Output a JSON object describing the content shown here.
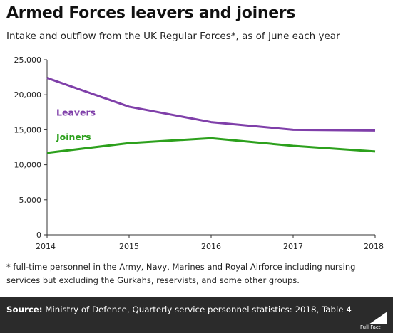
{
  "header": {
    "title": "Armed Forces leavers and joiners",
    "subtitle": "Intake and outflow from the UK Regular Forces*, as of June each year"
  },
  "chart_data": {
    "type": "line",
    "x": [
      2014,
      2015,
      2016,
      2017,
      2018
    ],
    "series": [
      {
        "name": "Leavers",
        "values": [
          22400,
          18300,
          16100,
          15000,
          14900
        ],
        "color": "#7f3fa9"
      },
      {
        "name": "Joiners",
        "values": [
          11700,
          13100,
          13800,
          12700,
          11900
        ],
        "color": "#2ca01c"
      }
    ],
    "ylim": [
      0,
      25000
    ],
    "yticks": [
      "0",
      "5,000",
      "10,000",
      "15,000",
      "20,000",
      "25,000"
    ],
    "xticks": [
      "2014",
      "2015",
      "2016",
      "2017",
      "2018"
    ],
    "grid": false,
    "legend": "inline labels"
  },
  "footnote": "* full-time personnel in the Army, Navy, Marines and Royal Airforce including nursing services but excluding the Gurkahs, reservists, and some other groups.",
  "source": {
    "prefix": "Source:",
    "text": " Ministry of Defence, Quarterly service personnel statistics: 2018, Table 4"
  },
  "logo": {
    "text": "Full Fact"
  }
}
